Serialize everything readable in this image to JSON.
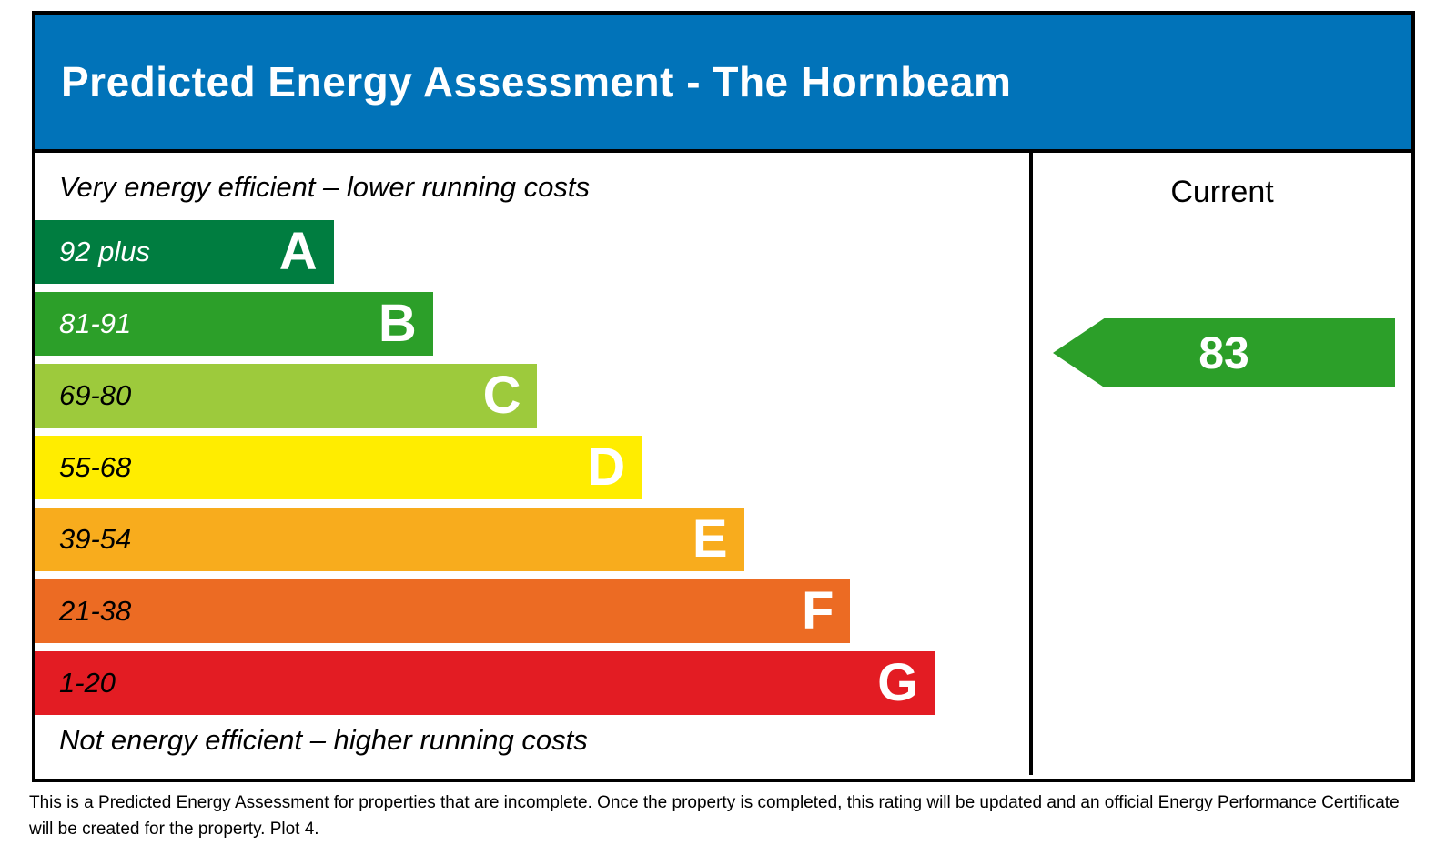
{
  "title": "Predicted Energy Assessment - The Hornbeam",
  "colors": {
    "header_bg": "#0173b9",
    "border": "#000000",
    "arrow": "#2c9f29"
  },
  "chart_data": {
    "type": "bar",
    "subtype": "epc-energy-rating",
    "title": "Predicted Energy Assessment - The Hornbeam",
    "top_caption": "Very energy efficient – lower running costs",
    "bottom_caption": "Not energy efficient – higher running costs",
    "column_header": "Current",
    "bands": [
      {
        "letter": "A",
        "range": "92 plus",
        "min": 92,
        "max": 100,
        "color": "#007d40",
        "text_color": "#ffffff",
        "width_pct": 30
      },
      {
        "letter": "B",
        "range": "81-91",
        "min": 81,
        "max": 91,
        "color": "#2c9f29",
        "text_color": "#ffffff",
        "width_pct": 40
      },
      {
        "letter": "C",
        "range": "69-80",
        "min": 69,
        "max": 80,
        "color": "#9dca3c",
        "text_color": "#000000",
        "width_pct": 50.5
      },
      {
        "letter": "D",
        "range": "55-68",
        "min": 55,
        "max": 68,
        "color": "#ffed00",
        "text_color": "#000000",
        "width_pct": 61
      },
      {
        "letter": "E",
        "range": "39-54",
        "min": 39,
        "max": 54,
        "color": "#f8ac1d",
        "text_color": "#000000",
        "width_pct": 71.3
      },
      {
        "letter": "F",
        "range": "21-38",
        "min": 21,
        "max": 38,
        "color": "#ec6b23",
        "text_color": "#000000",
        "width_pct": 82
      },
      {
        "letter": "G",
        "range": "1-20",
        "min": 1,
        "max": 20,
        "color": "#e31c23",
        "text_color": "#000000",
        "width_pct": 90.5
      }
    ],
    "current": {
      "value": "83",
      "band": "B",
      "color": "#2c9f29"
    }
  },
  "footer": "This is a Predicted Energy Assessment for properties that are incomplete. Once the property is completed, this rating will be updated and an official Energy Performance Certificate will be created for the property. Plot 4."
}
